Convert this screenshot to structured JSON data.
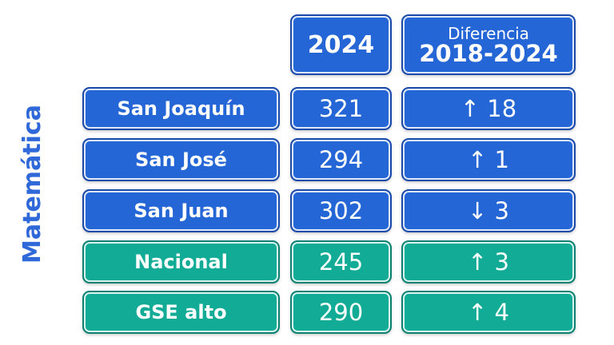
{
  "side_label": "Matemática",
  "headers": {
    "year": "2024",
    "diff_line1": "Diferencia",
    "diff_line2": "2018-2024"
  },
  "rows": [
    {
      "name": "San Joaquín",
      "score": "321",
      "diff": "↑ 18",
      "color": "#2566d6"
    },
    {
      "name": "San José",
      "score": "294",
      "diff": "↑ 1",
      "color": "#2566d6"
    },
    {
      "name": "San Juan",
      "score": "302",
      "diff": "↓ 3",
      "color": "#2566d6"
    },
    {
      "name": "Nacional",
      "score": "245",
      "diff": "↑ 3",
      "color": "#12ab96"
    },
    {
      "name": "GSE alto",
      "score": "290",
      "diff": "↑ 4",
      "color": "#12ab96"
    }
  ]
}
